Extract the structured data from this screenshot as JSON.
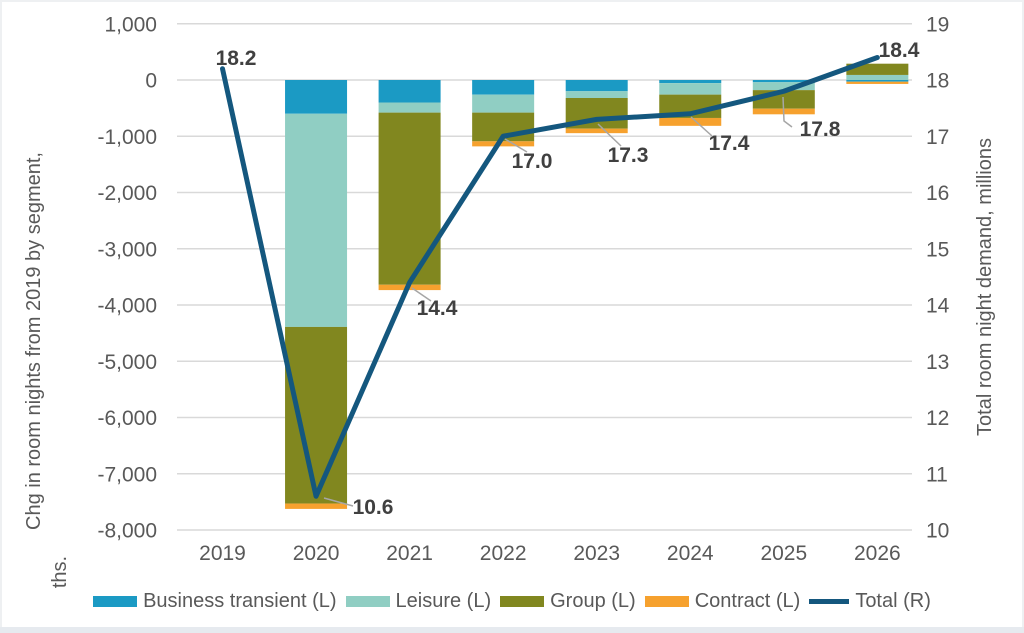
{
  "window": {
    "background": "#ffffff",
    "frame_border": "#eef0f2",
    "bottom_strip": "#e6eaef"
  },
  "chart_data": {
    "type": "combo-stacked-bar-line",
    "categories": [
      "2019",
      "2020",
      "2021",
      "2022",
      "2023",
      "2024",
      "2025",
      "2026"
    ],
    "bar_series": [
      {
        "name": "Business transient (L)",
        "color": "#1B9AC4",
        "values": [
          0,
          -600,
          -400,
          -260,
          -200,
          -55,
          -40,
          -30
        ]
      },
      {
        "name": "Leisure (L)",
        "color": "#90CEC3",
        "values": [
          0,
          -3790,
          -180,
          -320,
          -120,
          -205,
          -140,
          90
        ]
      },
      {
        "name": "Group (L)",
        "color": "#81871F",
        "values": [
          0,
          -3140,
          -3060,
          -510,
          -545,
          -415,
          -330,
          200
        ]
      },
      {
        "name": "Contract (L)",
        "color": "#F6A12E",
        "values": [
          0,
          -95,
          -95,
          -90,
          -80,
          -140,
          -100,
          -40
        ]
      }
    ],
    "line_series": {
      "name": "Total (R)",
      "color": "#14577E",
      "axis": "right",
      "values": [
        18.2,
        10.6,
        14.4,
        17.0,
        17.3,
        17.4,
        17.8,
        18.4
      ]
    },
    "data_labels": [
      "18.2",
      "10.6",
      "14.4",
      "17.0",
      "17.3",
      "17.4",
      "17.8",
      "18.4"
    ],
    "left_axis": {
      "title": "Chg in room nights from 2019 by segment, ths.",
      "title_line1": "Chg in room nights from 2019 by segment,",
      "title_line2": "ths.",
      "max": 1000,
      "min": -8000,
      "step": 1000,
      "tick_labels": [
        "1,000",
        "0",
        "-1,000",
        "-2,000",
        "-3,000",
        "-4,000",
        "-5,000",
        "-6,000",
        "-7,000",
        "-8,000"
      ]
    },
    "right_axis": {
      "title": "Total room night demand, millions",
      "max": 19,
      "min": 10,
      "step": 1,
      "tick_labels": [
        "19",
        "18",
        "17",
        "16",
        "15",
        "14",
        "13",
        "12",
        "11",
        "10"
      ]
    },
    "grid": true,
    "legend_position": "bottom",
    "colors": {
      "grid": "#D9D9D9",
      "tick_text": "#595959",
      "data_label_text": "#404040",
      "leader_line": "#A6A6A6"
    }
  }
}
